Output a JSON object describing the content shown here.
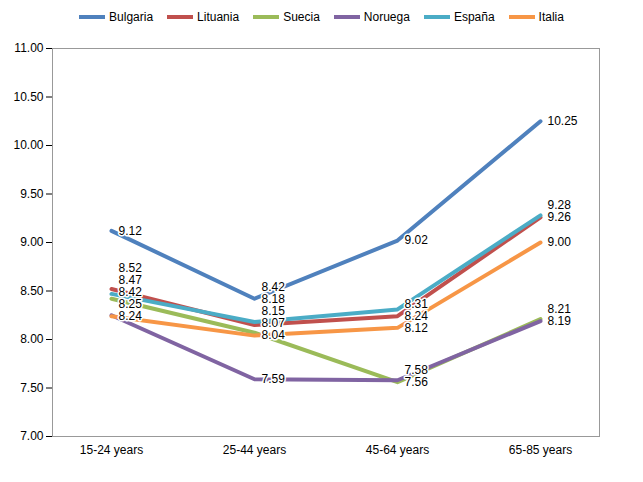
{
  "chart_data": {
    "type": "line",
    "categories": [
      "15-24 years",
      "25-44 years",
      "45-64 years",
      "65-85 years"
    ],
    "series": [
      {
        "name": "Bulgaria",
        "color": "#4f81bd",
        "values": [
          9.12,
          8.42,
          9.02,
          10.25
        ],
        "value_labels": [
          "9.12",
          "8.42",
          "9.02",
          "10.25"
        ]
      },
      {
        "name": "Lituania",
        "color": "#c0504d",
        "values": [
          8.52,
          8.15,
          8.24,
          9.26
        ],
        "value_labels": [
          "8.52",
          "8.15",
          "8.24",
          "9.26"
        ]
      },
      {
        "name": "Suecia",
        "color": "#9bbb59",
        "values": [
          8.42,
          8.07,
          7.56,
          8.21
        ],
        "value_labels": [
          "8.42",
          "8.07",
          "7.56",
          "8.21"
        ]
      },
      {
        "name": "Noruega",
        "color": "#8064a2",
        "values": [
          8.25,
          7.59,
          7.58,
          8.19
        ],
        "value_labels": [
          "8.25",
          "7.59",
          "7.58",
          "8.19"
        ]
      },
      {
        "name": "España",
        "color": "#4bacc6",
        "values": [
          8.47,
          8.18,
          8.31,
          9.28
        ],
        "value_labels": [
          "8.47",
          "8.18",
          "8.31",
          "9.28"
        ]
      },
      {
        "name": "Italia",
        "color": "#f79646",
        "values": [
          8.24,
          8.04,
          8.12,
          9.0
        ],
        "value_labels": [
          "8.24",
          "8.04",
          "8.12",
          "9.00"
        ]
      }
    ],
    "ylim": [
      7,
      11
    ],
    "yticks": [
      {
        "value": 7,
        "label": "7.00"
      },
      {
        "value": 7.5,
        "label": "7.50"
      },
      {
        "value": 8,
        "label": "8.00"
      },
      {
        "value": 8.5,
        "label": "8.50"
      },
      {
        "value": 9,
        "label": "9.00"
      },
      {
        "value": 9.5,
        "label": "9.50"
      },
      {
        "value": 10,
        "label": "10.00"
      },
      {
        "value": 10.5,
        "label": "10.50"
      },
      {
        "value": 11,
        "label": "11.00"
      }
    ],
    "grid": false,
    "legend": "top",
    "data_labels": true
  }
}
